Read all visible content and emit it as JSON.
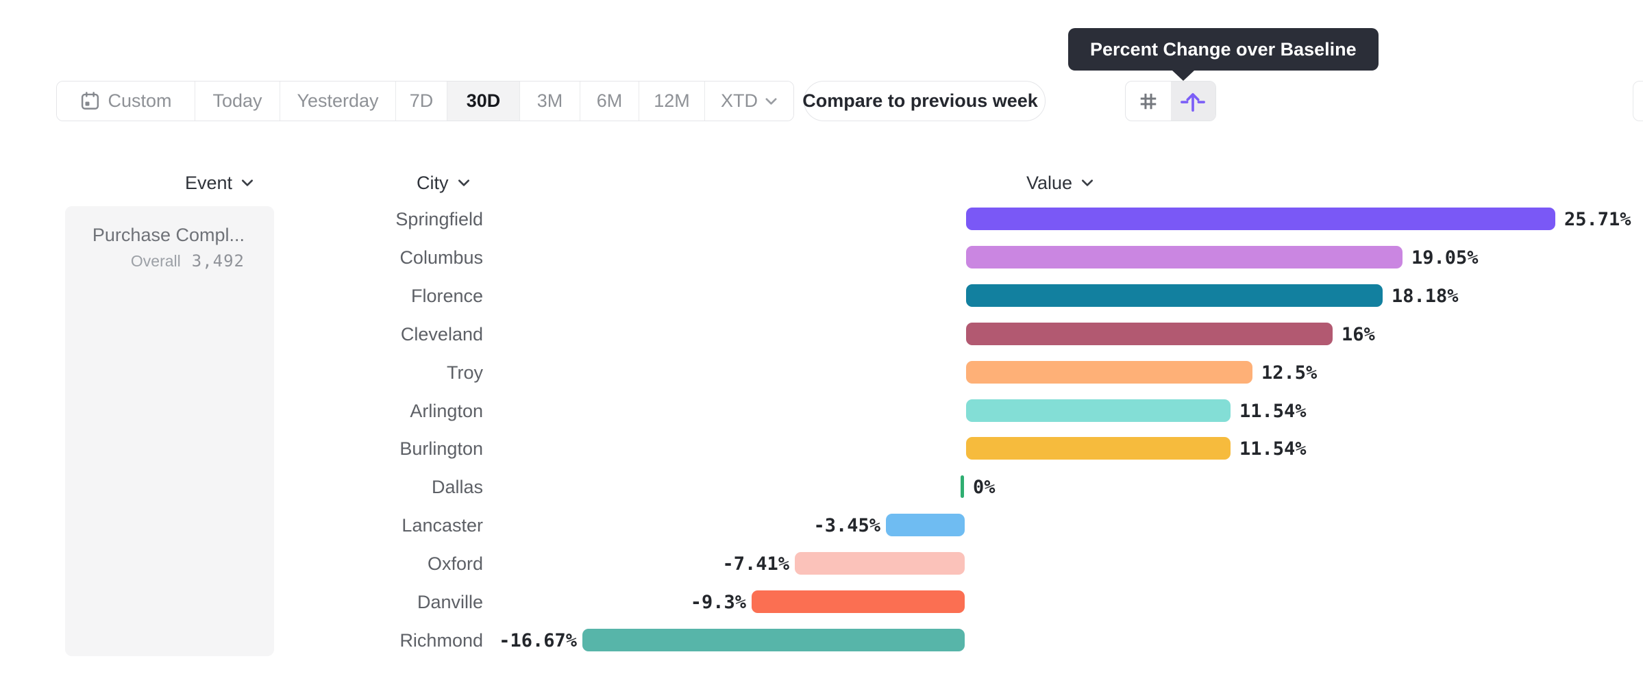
{
  "tooltip": {
    "text": "Percent Change over Baseline"
  },
  "toolbar": {
    "ranges": [
      {
        "label": "Custom",
        "icon": "calendar-icon",
        "selected": false
      },
      {
        "label": "Today",
        "selected": false
      },
      {
        "label": "Yesterday",
        "selected": false
      },
      {
        "label": "7D",
        "selected": false
      },
      {
        "label": "30D",
        "selected": true
      },
      {
        "label": "3M",
        "selected": false
      },
      {
        "label": "6M",
        "selected": false
      },
      {
        "label": "12M",
        "selected": false
      },
      {
        "label": "XTD",
        "chevron": true,
        "selected": false
      }
    ]
  },
  "compare": {
    "label": "Compare to previous week",
    "close_icon": "close-circle-icon"
  },
  "view_toggle": {
    "items": [
      {
        "icon": "hash-icon",
        "selected": false
      },
      {
        "icon": "percent-change-icon",
        "selected": true
      }
    ],
    "accent": "#7b5ef7"
  },
  "headers": {
    "event": "Event",
    "city": "City",
    "value": "Value"
  },
  "event_panel": {
    "title": "Purchase Compl...",
    "overall_label": "Overall",
    "overall_value": "3,492"
  },
  "chart_data": {
    "type": "bar",
    "orientation": "horizontal",
    "title": "Percent Change over Baseline",
    "value_format": "percent",
    "categories": [
      "Springfield",
      "Columbus",
      "Florence",
      "Cleveland",
      "Troy",
      "Arlington",
      "Burlington",
      "Dallas",
      "Lancaster",
      "Oxford",
      "Danville",
      "Richmond"
    ],
    "values": [
      25.71,
      19.05,
      18.18,
      16,
      12.5,
      11.54,
      11.54,
      0,
      -3.45,
      -7.41,
      -9.3,
      -16.67
    ],
    "labels": [
      "25.71%",
      "19.05%",
      "18.18%",
      "16%",
      "12.5%",
      "11.54%",
      "11.54%",
      "0%",
      "-3.45%",
      "-7.41%",
      "-9.3%",
      "-16.67%"
    ],
    "colors": [
      "#7a58f6",
      "#ca86e1",
      "#12809f",
      "#b25971",
      "#feb077",
      "#83ded6",
      "#f6bb3d",
      "#2fae71",
      "#6fbcf2",
      "#fbc2ba",
      "#fb6f52",
      "#57b5a9"
    ],
    "xlim": [
      -16.67,
      25.71
    ],
    "grid": false,
    "legend": false
  }
}
